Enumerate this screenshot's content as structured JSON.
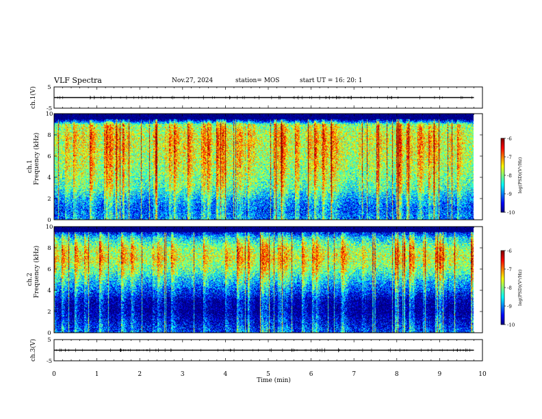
{
  "header": {
    "title": "VLF Spectra",
    "date": "Nov.27, 2024",
    "station": "station= MOS",
    "start": "start  UT  =   16: 20: 1"
  },
  "chart_data": [
    {
      "type": "line",
      "panel": "ch1-waveform",
      "ylabel": "ch.1(V)",
      "yticks": [
        "5",
        "-5"
      ],
      "ylim": [
        -5,
        5
      ],
      "xlim": [
        0,
        10
      ],
      "values": [
        0.0,
        0.0
      ],
      "x": [
        0,
        9.8
      ]
    },
    {
      "type": "heatmap",
      "panel": "ch1-spectrogram",
      "ylabel": "ch.1\nFrequency (kHz)",
      "yticks": [
        "0",
        "2",
        "4",
        "6",
        "8",
        "10"
      ],
      "ylim": [
        0,
        10
      ],
      "xlim": [
        0,
        10
      ],
      "data_end_min": 9.8,
      "colorbar": {
        "label": "log(PSD)(V²/Hz)",
        "ticks": [
          "-6",
          "-7",
          "-8",
          "-9",
          "-10"
        ],
        "range": [
          -10,
          -6
        ]
      },
      "band_profile_kHz": [
        0,
        1,
        2,
        3,
        4,
        5,
        6,
        7,
        8,
        9,
        9.5,
        10
      ],
      "band_profile_level": [
        -8.5,
        -8.8,
        -8.4,
        -7.8,
        -7.6,
        -7.4,
        -7.3,
        -7.2,
        -7.2,
        -7.5,
        -9.8,
        -10
      ]
    },
    {
      "type": "heatmap",
      "panel": "ch2-spectrogram",
      "ylabel": "ch.2\nFrequency (kHz)",
      "yticks": [
        "0",
        "2",
        "4",
        "6",
        "8",
        "10"
      ],
      "ylim": [
        0,
        10
      ],
      "xlim": [
        0,
        10
      ],
      "data_end_min": 9.8,
      "colorbar": {
        "label": "log(PSD)(V²/Hz)",
        "ticks": [
          "-6",
          "-7",
          "-8",
          "-9",
          "-10"
        ],
        "range": [
          -10,
          -6
        ]
      },
      "band_profile_kHz": [
        0,
        1,
        2,
        3,
        4,
        5,
        6,
        7,
        8,
        9,
        9.5,
        10
      ],
      "band_profile_level": [
        -8.8,
        -9.2,
        -9.6,
        -9.5,
        -8.8,
        -8.2,
        -7.6,
        -7.2,
        -7.4,
        -8.2,
        -9.2,
        -10
      ]
    },
    {
      "type": "line",
      "panel": "ch3-waveform",
      "ylabel": "ch.3(V)",
      "yticks": [
        "5",
        "-5"
      ],
      "ylim": [
        -5,
        5
      ],
      "xlim": [
        0,
        10
      ],
      "values": [
        0.0,
        0.0
      ],
      "x": [
        0,
        9.8
      ]
    }
  ],
  "xaxis": {
    "label": "Time  (min)",
    "ticks": [
      "0",
      "1",
      "2",
      "3",
      "4",
      "5",
      "6",
      "7",
      "8",
      "9",
      "10"
    ]
  },
  "colors": {
    "frame": "#000000",
    "background": "#ffffff"
  }
}
